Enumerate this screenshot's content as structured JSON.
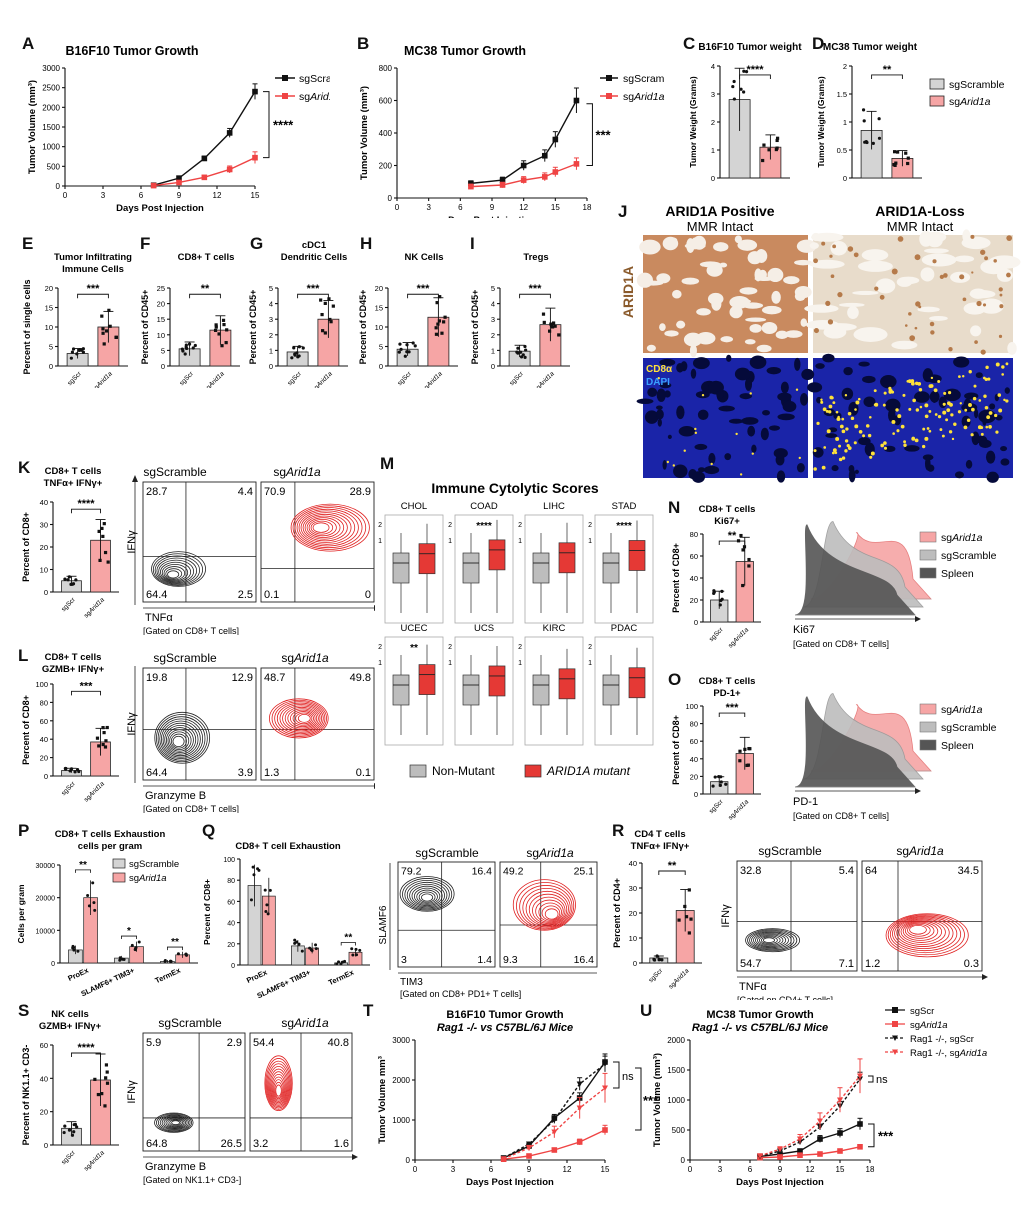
{
  "figure": {
    "panel_letters": [
      "A",
      "B",
      "C",
      "D",
      "E",
      "F",
      "G",
      "H",
      "I",
      "J",
      "K",
      "L",
      "M",
      "N",
      "O",
      "P",
      "Q",
      "R",
      "S",
      "T",
      "U"
    ],
    "legend_common": {
      "scramble": "sgScramble",
      "arid_prefix": "sg",
      "arid_italic": "Arid1a",
      "scr_short": "sgScr"
    },
    "flow": {
      "ifng": "IFNγ",
      "tnfa": "TNFα",
      "gzmb": "Granzyme B",
      "tim3": "TIM3",
      "slamf6": "SLAMF6",
      "gate_cd8": "[Gated on CD8+ T cells]",
      "gate_cd4": "[Gated on CD4+ T cells]",
      "gate_pd1": "[Gated on CD8+ PD1+ T cells]",
      "gate_nk": "[Gated on NK1.1+ CD3-]"
    },
    "percent_cd8": "Percent of CD8+",
    "sig": {
      "four": "****",
      "three": "***",
      "two": "**",
      "one": "*",
      "ns": "ns"
    }
  },
  "chart_data": [
    {
      "id": "A",
      "type": "line",
      "title": "B16F10 Tumor Growth",
      "xlabel": "Days Post Injection",
      "ylabel": "Tumor Volume (mm³)",
      "xlim": [
        0,
        15
      ],
      "ylim": [
        0,
        3000
      ],
      "xticks": [
        0,
        3,
        6,
        9,
        12,
        15
      ],
      "yticks": [
        0,
        500,
        1000,
        1500,
        2000,
        2500,
        3000
      ],
      "x": [
        7,
        9,
        11,
        13,
        15
      ],
      "series": [
        {
          "name": "sgScramble",
          "values": [
            20,
            200,
            700,
            1350,
            2400
          ]
        },
        {
          "name": "sgArid1a",
          "values": [
            10,
            90,
            220,
            420,
            720
          ]
        }
      ],
      "significance": "****"
    },
    {
      "id": "B",
      "type": "line",
      "title": "MC38 Tumor Growth",
      "xlabel": "Days Post Injection",
      "ylabel": "Tumor Volume (mm³)",
      "xlim": [
        0,
        18
      ],
      "ylim": [
        0,
        800
      ],
      "xticks": [
        0,
        3,
        6,
        9,
        12,
        15,
        18
      ],
      "yticks": [
        0,
        200,
        400,
        600,
        800
      ],
      "x": [
        7,
        10,
        12,
        14,
        15,
        17
      ],
      "series": [
        {
          "name": "sgScramble",
          "values": [
            90,
            110,
            200,
            260,
            360,
            600
          ]
        },
        {
          "name": "sgArid1a",
          "values": [
            70,
            80,
            110,
            130,
            160,
            210
          ]
        }
      ],
      "significance": "***"
    },
    {
      "id": "C",
      "type": "bar",
      "title": "B16F10 Tumor weight",
      "ylabel": "Tumor Weight (Grams)",
      "categories": [
        "sgScramble",
        "sgArid1a"
      ],
      "values": [
        2.8,
        1.1
      ],
      "ylim": [
        0,
        4
      ],
      "yticks": [
        0,
        1,
        2,
        3,
        4
      ],
      "significance": "****"
    },
    {
      "id": "D",
      "type": "bar",
      "title": "MC38 Tumor weight",
      "ylabel": "Tumor Weight (Grams)",
      "categories": [
        "sgScramble",
        "sgArid1a"
      ],
      "values": [
        0.85,
        0.35
      ],
      "ylim": [
        0,
        2
      ],
      "yticks": [
        0.0,
        0.5,
        1.0,
        1.5,
        2.0
      ],
      "significance": "**"
    },
    {
      "id": "E",
      "type": "bar",
      "title": "Tumor Infiltrating Immune Cells",
      "ylabel": "Percent of single cells",
      "categories": [
        "sgScr",
        "sgArid1a"
      ],
      "values": [
        3.2,
        10
      ],
      "ylim": [
        0,
        20
      ],
      "yticks": [
        0,
        5,
        10,
        15,
        20
      ],
      "significance": "***"
    },
    {
      "id": "F",
      "type": "bar",
      "title": "CD8+ T cells",
      "ylabel": "Percent of CD45+",
      "categories": [
        "sgScr",
        "sgArid1a"
      ],
      "values": [
        5.5,
        11.5
      ],
      "ylim": [
        0,
        25
      ],
      "yticks": [
        0,
        5,
        10,
        15,
        20,
        25
      ],
      "significance": "**"
    },
    {
      "id": "G",
      "type": "bar",
      "title": "cDC1 Dendritic Cells",
      "ylabel": "Percent of CD45+",
      "categories": [
        "sgScr",
        "sgArid1a"
      ],
      "values": [
        0.9,
        3.0
      ],
      "ylim": [
        0,
        5
      ],
      "yticks": [
        0,
        1,
        2,
        3,
        4,
        5
      ],
      "significance": "***"
    },
    {
      "id": "H",
      "type": "bar",
      "title": "NK Cells",
      "ylabel": "Percent of CD45+",
      "categories": [
        "sgScr",
        "sgArid1a"
      ],
      "values": [
        4.3,
        12.5
      ],
      "ylim": [
        0,
        20
      ],
      "yticks": [
        0,
        5,
        10,
        15,
        20
      ],
      "significance": "***"
    },
    {
      "id": "I",
      "type": "bar",
      "title": "Tregs",
      "ylabel": "Percent of CD45+",
      "categories": [
        "sgScr",
        "sgArid1a"
      ],
      "values": [
        0.95,
        2.65
      ],
      "ylim": [
        0,
        5
      ],
      "yticks": [
        0,
        1,
        2,
        3,
        4,
        5
      ],
      "significance": "***"
    },
    {
      "id": "K",
      "type": "bar",
      "title": "CD8+ T cells TNFα+ IFNγ+",
      "ylabel": "Percent of CD8+",
      "categories": [
        "sgScr",
        "sgArid1a"
      ],
      "values": [
        5,
        23
      ],
      "ylim": [
        0,
        40
      ],
      "yticks": [
        0,
        10,
        20,
        30,
        40
      ],
      "significance": "****",
      "flow": {
        "quadrants": [
          {
            "name": "sgScramble",
            "tl": "28.7",
            "tr": "4.4",
            "bl": "64.4",
            "br": "2.5"
          },
          {
            "name": "sgArid1a",
            "tl": "70.9",
            "tr": "28.9",
            "bl": "0.1",
            "br": "0"
          }
        ]
      }
    },
    {
      "id": "L",
      "type": "bar",
      "title": "CD8+ T cells GZMB+ IFNγ+",
      "ylabel": "Percent of CD8+",
      "categories": [
        "sgScr",
        "sgArid1a"
      ],
      "values": [
        6,
        37
      ],
      "ylim": [
        0,
        100
      ],
      "yticks": [
        0,
        20,
        40,
        60,
        80,
        100
      ],
      "significance": "***",
      "flow": {
        "quadrants": [
          {
            "name": "sgScramble",
            "tl": "19.8",
            "tr": "12.9",
            "bl": "64.4",
            "br": "3.9"
          },
          {
            "name": "sgArid1a",
            "tl": "48.7",
            "tr": "49.8",
            "bl": "1.3",
            "br": "0.1"
          }
        ]
      }
    },
    {
      "id": "M",
      "type": "boxplot",
      "title": "Immune Cytolytic Scores",
      "legend": [
        "Non-Mutant",
        "ARID1A mutant"
      ],
      "cancers": [
        {
          "name": "CHOL",
          "sig": ""
        },
        {
          "name": "COAD",
          "sig": "****"
        },
        {
          "name": "LIHC",
          "sig": ""
        },
        {
          "name": "STAD",
          "sig": "****"
        },
        {
          "name": "UCEC",
          "sig": "**"
        },
        {
          "name": "UCS",
          "sig": ""
        },
        {
          "name": "KIRC",
          "sig": ""
        },
        {
          "name": "PDAC",
          "sig": ""
        }
      ],
      "yticks": [
        "1",
        "2"
      ]
    },
    {
      "id": "N",
      "type": "bar",
      "title": "CD8+ T cells Ki67+",
      "ylabel": "Percent of CD8+",
      "categories": [
        "sgScr",
        "sgArid1a"
      ],
      "values": [
        20,
        55
      ],
      "ylim": [
        0,
        80
      ],
      "yticks": [
        0,
        20,
        40,
        60,
        80
      ],
      "significance": "**",
      "histogram": {
        "xlabel": "Ki67",
        "legend": [
          "sgArid1a",
          "sgScramble",
          "Spleen"
        ],
        "gate": "[Gated on CD8+ T cells]"
      }
    },
    {
      "id": "O",
      "type": "bar",
      "title": "CD8+ T cells PD-1+",
      "ylabel": "Percent of CD8+",
      "categories": [
        "sgScr",
        "sgArid1a"
      ],
      "values": [
        14,
        46
      ],
      "ylim": [
        0,
        100
      ],
      "yticks": [
        0,
        20,
        40,
        60,
        80,
        100
      ],
      "significance": "***",
      "histogram": {
        "xlabel": "PD-1",
        "legend": [
          "sgArid1a",
          "sgScramble",
          "Spleen"
        ],
        "gate": "[Gated on CD8+ T cells]"
      }
    },
    {
      "id": "P",
      "type": "bar",
      "title": "CD8+ T cells Exhaustion cells per gram",
      "ylabel": "Cells per gram",
      "categories": [
        "ProEx",
        "SLAMF6+ TIM3+",
        "TermEx"
      ],
      "series": [
        {
          "name": "sgScramble",
          "values": [
            4000,
            1500,
            500
          ]
        },
        {
          "name": "sgArid1a",
          "values": [
            20000,
            5000,
            2500
          ]
        }
      ],
      "ylim": [
        0,
        30000
      ],
      "yticks": [
        0,
        10000,
        20000,
        30000
      ],
      "significance": [
        "**",
        "*",
        "**"
      ]
    },
    {
      "id": "Q",
      "type": "bar",
      "title": "CD8+ T cell Exhaustion",
      "ylabel": "Percent of CD8+",
      "categories": [
        "ProEx",
        "SLAMF6+ TIM3+",
        "TermEx"
      ],
      "series": [
        {
          "name": "sgScramble",
          "values": [
            75,
            18,
            2
          ]
        },
        {
          "name": "sgArid1a",
          "values": [
            65,
            16,
            12
          ]
        }
      ],
      "ylim": [
        0,
        100
      ],
      "yticks": [
        0,
        20,
        40,
        60,
        80,
        100
      ],
      "significance": [
        "",
        "",
        "**"
      ],
      "flow": {
        "quadrants": [
          {
            "name": "sgScramble",
            "tl": "79.2",
            "tr": "16.4",
            "bl": "3",
            "br": "1.4"
          },
          {
            "name": "sgArid1a",
            "tl": "49.2",
            "tr": "25.1",
            "bl": "9.3",
            "br": "16.4"
          }
        ]
      }
    },
    {
      "id": "R",
      "type": "bar",
      "title": "CD4 T cells TNFα+ IFNγ+",
      "ylabel": "Percent of CD4+",
      "categories": [
        "sgScr",
        "sgArid1a"
      ],
      "values": [
        2,
        21
      ],
      "ylim": [
        0,
        40
      ],
      "yticks": [
        0,
        10,
        20,
        30,
        40
      ],
      "significance": "**",
      "flow": {
        "quadrants": [
          {
            "name": "sgScramble",
            "tl": "32.8",
            "tr": "5.4",
            "bl": "54.7",
            "br": "7.1"
          },
          {
            "name": "sgArid1a",
            "tl": "64",
            "tr": "34.5",
            "bl": "1.2",
            "br": "0.3"
          }
        ]
      }
    },
    {
      "id": "S",
      "type": "bar",
      "title": "NK cells GZMB+ IFNγ+",
      "ylabel": "Percent of NK1.1+ CD3-",
      "categories": [
        "sgScr",
        "sgArid1a"
      ],
      "values": [
        10,
        39
      ],
      "ylim": [
        0,
        60
      ],
      "yticks": [
        0,
        20,
        40,
        60
      ],
      "significance": "****",
      "flow": {
        "quadrants": [
          {
            "name": "sgScramble",
            "tl": "5.9",
            "tr": "2.9",
            "bl": "64.8",
            "br": "26.5"
          },
          {
            "name": "sgArid1a",
            "tl": "54.4",
            "tr": "40.8",
            "bl": "3.2",
            "br": "1.6"
          }
        ]
      }
    },
    {
      "id": "T",
      "type": "line",
      "title": "B16F10 Tumor Growth",
      "subtitle": "Rag1 -/- vs C57BL/6J Mice",
      "xlabel": "Days Post Injection",
      "ylabel": "Tumor Volume mm³",
      "xlim": [
        0,
        15
      ],
      "ylim": [
        0,
        3000
      ],
      "xticks": [
        0,
        3,
        6,
        9,
        12,
        15
      ],
      "yticks": [
        0,
        1000,
        2000,
        3000
      ],
      "x": [
        7,
        9,
        11,
        13,
        15
      ],
      "series": [
        {
          "name": "sgScr",
          "values": [
            50,
            350,
            1050,
            1550,
            2450
          ]
        },
        {
          "name": "sgArid1a",
          "values": [
            20,
            100,
            250,
            450,
            750
          ]
        },
        {
          "name": "Rag1 -/-, sgScr",
          "values": [
            50,
            400,
            1000,
            1900,
            2400
          ]
        },
        {
          "name": "Rag1 -/-, sgArid1a",
          "values": [
            30,
            300,
            700,
            1300,
            1800
          ]
        }
      ],
      "significance": [
        "ns",
        "****"
      ]
    },
    {
      "id": "U",
      "type": "line",
      "title": "MC38 Tumor Growth",
      "subtitle": "Rag1 -/- vs C57BL/6J Mice",
      "xlabel": "Days Post Injection",
      "ylabel": "Tumor Volume (mm³)",
      "xlim": [
        0,
        18
      ],
      "ylim": [
        0,
        2000
      ],
      "xticks": [
        0,
        3,
        6,
        9,
        12,
        15,
        18
      ],
      "yticks": [
        0,
        500,
        1000,
        1500,
        2000
      ],
      "x": [
        7,
        9,
        11,
        13,
        15,
        17
      ],
      "series": [
        {
          "name": "sgScr",
          "values": [
            60,
            100,
            150,
            350,
            450,
            600
          ]
        },
        {
          "name": "sgArid1a",
          "values": [
            40,
            50,
            80,
            100,
            150,
            220
          ]
        },
        {
          "name": "Rag1 -/-, sgScr",
          "values": [
            60,
            150,
            300,
            550,
            900,
            1350
          ]
        },
        {
          "name": "Rag1 -/-, sgArid1a",
          "values": [
            70,
            180,
            350,
            650,
            1000,
            1400
          ]
        }
      ],
      "significance": [
        "ns",
        "***"
      ]
    }
  ],
  "panel_J": {
    "col1_title": "ARID1A Positive",
    "col2_title": "ARID1A-Loss",
    "subtitle": "MMR Intact",
    "row1_label": "ARID1A",
    "stain1": "CD8α",
    "stain2": "DAPI"
  }
}
